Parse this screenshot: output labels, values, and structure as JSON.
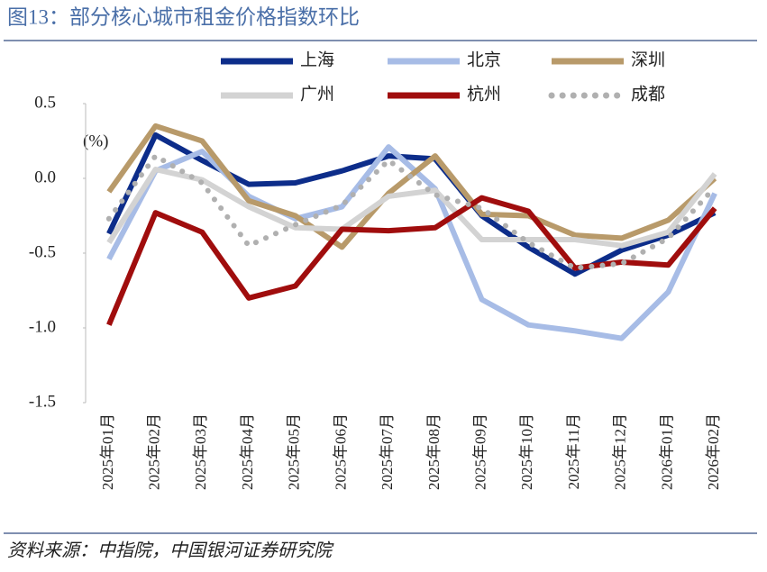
{
  "chart_data": {
    "type": "line",
    "title": "图13：部分核心城市租金价格指数环比",
    "source": "资料来源：中指院，中国银河证券研究院",
    "annotation": "(%)",
    "categories": [
      "2025年01月",
      "2025年02月",
      "2025年03月",
      "2025年04月",
      "2025年05月",
      "2025年06月",
      "2025年07月",
      "2025年08月",
      "2025年09月",
      "2025年10月",
      "2025年11月",
      "2025年12月",
      "2026年01月",
      "2026年02月"
    ],
    "ylim": [
      -1.5,
      0.5
    ],
    "yticks": [
      0.5,
      {
        "value": 0,
        "label": "0.0"
      },
      -0.5,
      {
        "value": -1,
        "label": "-1.0"
      },
      -1.5
    ],
    "grid": false,
    "legend": "top",
    "series": [
      {
        "name": "上海",
        "color": "#0d2d8a",
        "style": "solid",
        "values": [
          -0.37,
          0.29,
          0.12,
          -0.04,
          -0.03,
          0.05,
          0.15,
          0.13,
          -0.25,
          -0.46,
          -0.64,
          -0.48,
          -0.38,
          -0.23
        ]
      },
      {
        "name": "北京",
        "color": "#a7bce6",
        "style": "solid",
        "values": [
          -0.54,
          0.05,
          0.18,
          -0.12,
          -0.27,
          -0.19,
          0.21,
          -0.07,
          -0.81,
          -0.98,
          -1.02,
          -1.07,
          -0.76,
          -0.1
        ]
      },
      {
        "name": "深圳",
        "color": "#b89a6a",
        "style": "solid",
        "values": [
          -0.09,
          0.35,
          0.25,
          -0.15,
          -0.25,
          -0.46,
          -0.1,
          0.15,
          -0.24,
          -0.25,
          -0.38,
          -0.4,
          -0.28,
          0
        ]
      },
      {
        "name": "广州",
        "color": "#d3d3d3",
        "style": "solid",
        "values": [
          -0.43,
          0.06,
          -0.01,
          -0.19,
          -0.33,
          -0.34,
          -0.12,
          -0.08,
          -0.41,
          -0.41,
          -0.41,
          -0.45,
          -0.36,
          0.03
        ]
      },
      {
        "name": "杭州",
        "color": "#a00d0d",
        "style": "solid",
        "values": [
          -0.98,
          -0.23,
          -0.36,
          -0.8,
          -0.72,
          -0.34,
          -0.35,
          -0.33,
          -0.13,
          -0.22,
          -0.6,
          -0.56,
          -0.58,
          -0.2
        ]
      },
      {
        "name": "成都",
        "color": "#b0b0b0",
        "style": "dotted",
        "values": [
          -0.27,
          0.15,
          -0.03,
          -0.45,
          -0.31,
          -0.18,
          0.12,
          -0.11,
          -0.2,
          -0.43,
          -0.6,
          -0.57,
          -0.4,
          -0.06
        ]
      }
    ]
  }
}
